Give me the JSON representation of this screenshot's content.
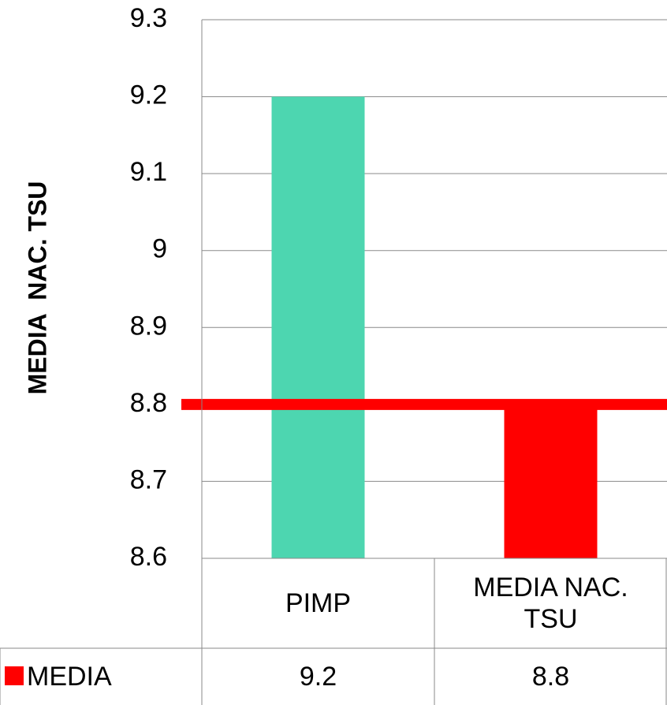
{
  "chart_data": {
    "type": "bar",
    "y_label": "MEDIA  NAC. TSU",
    "categories": [
      "PIMP",
      "MEDIA NAC. TSU"
    ],
    "series": [
      {
        "name": "MEDIA",
        "color": "#ff0000",
        "point_colors": [
          "#4dd6b0",
          "#ff0000"
        ],
        "values": [
          9.2,
          8.8
        ]
      }
    ],
    "reference_line": {
      "value": 8.8,
      "color": "#ff0000"
    },
    "ylim": [
      8.6,
      9.3
    ],
    "yticks": [
      8.6,
      8.7,
      8.8,
      8.9,
      9,
      9.1,
      9.2,
      9.3
    ],
    "grid": true,
    "data_table": true
  }
}
